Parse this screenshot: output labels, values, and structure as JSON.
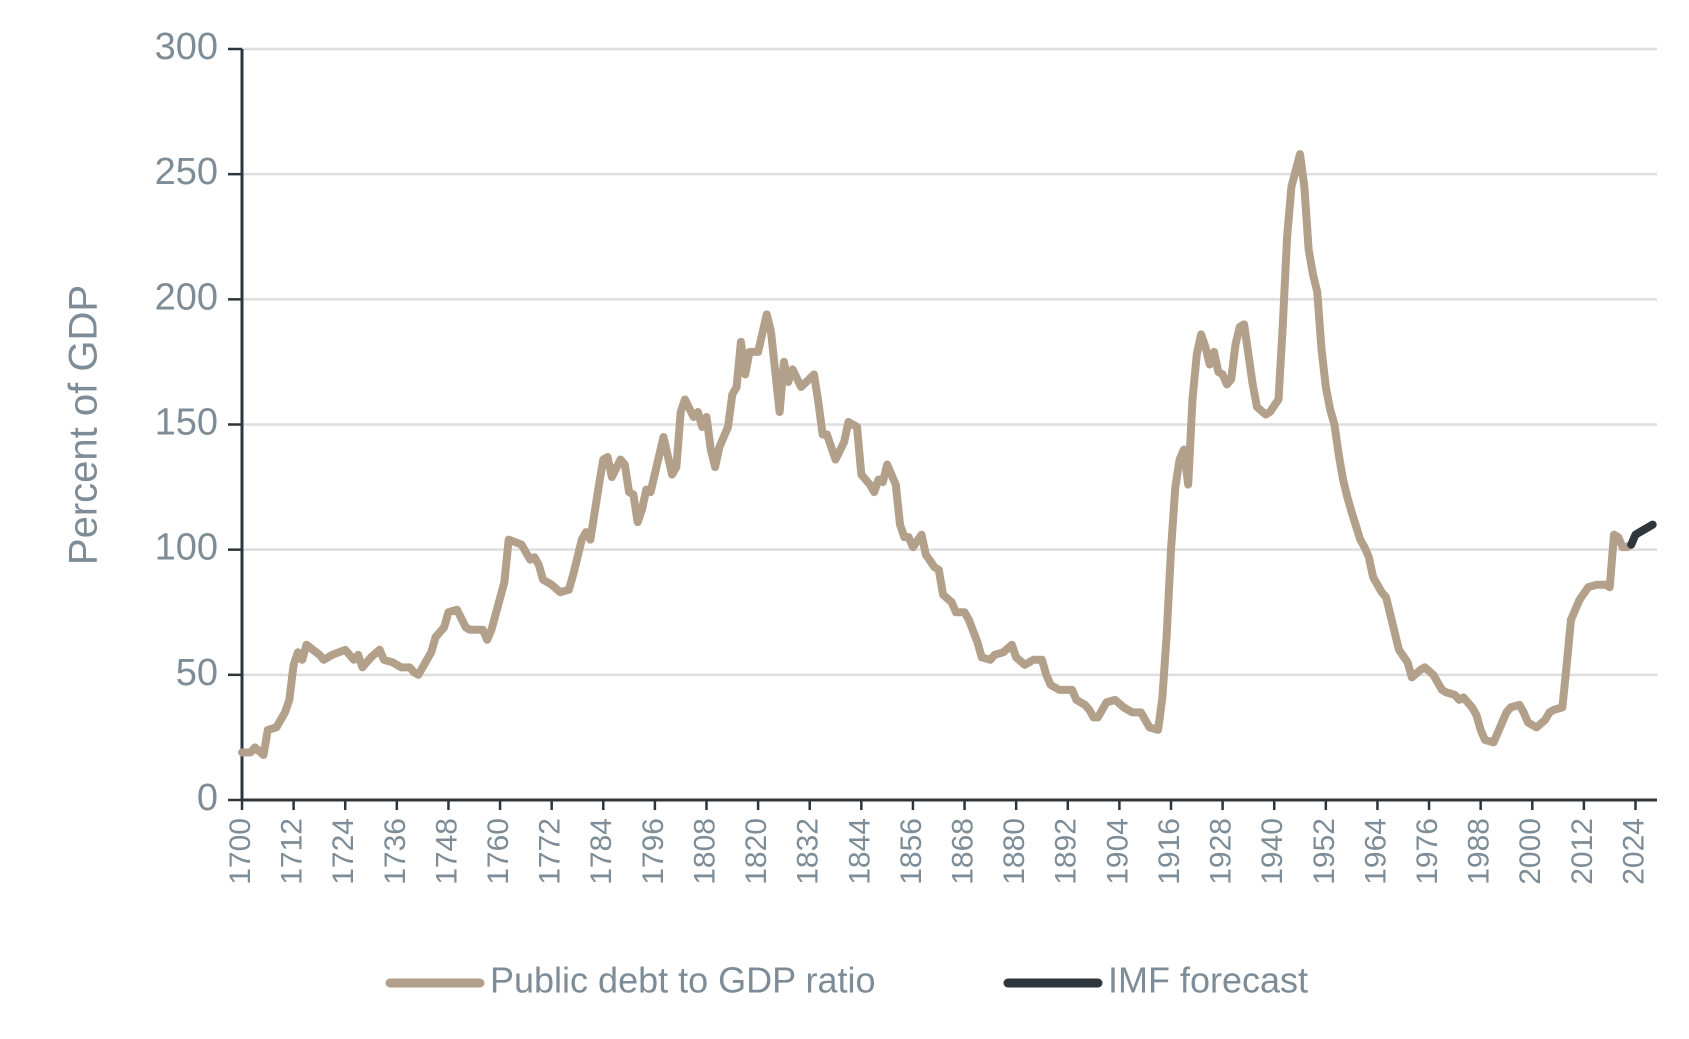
{
  "chart_data": {
    "type": "line",
    "y_label": "Percent of GDP",
    "xlim": [
      1700,
      2029
    ],
    "ylim": [
      0,
      300
    ],
    "xticks": [
      1700,
      1712,
      1724,
      1736,
      1748,
      1760,
      1772,
      1784,
      1796,
      1808,
      1820,
      1832,
      1844,
      1856,
      1868,
      1880,
      1892,
      1904,
      1916,
      1928,
      1940,
      1952,
      1964,
      1976,
      1988,
      2000,
      2012,
      2024
    ],
    "yticks": [
      0,
      50,
      100,
      150,
      200,
      250,
      300
    ],
    "grid": true,
    "legend": "bottom",
    "series": [
      {
        "name": "Public debt to GDP ratio",
        "color": "#b3a08b",
        "x": [
          1700,
          1702,
          1703,
          1705,
          1706,
          1708,
          1710,
          1711,
          1712,
          1713,
          1714,
          1715,
          1718,
          1719,
          1721,
          1724,
          1726,
          1727,
          1728,
          1730,
          1732,
          1733,
          1735,
          1737,
          1739,
          1740,
          1741,
          1742,
          1744,
          1745,
          1747,
          1748,
          1750,
          1752,
          1753,
          1756,
          1757,
          1758,
          1761,
          1762,
          1765,
          1767,
          1768,
          1769,
          1770,
          1772,
          1774,
          1776,
          1777,
          1779,
          1780,
          1781,
          1783,
          1784,
          1785,
          1786,
          1788,
          1789,
          1790,
          1791,
          1792,
          1793,
          1794,
          1795,
          1798,
          1800,
          1801,
          1802,
          1803,
          1805,
          1806,
          1807,
          1808,
          1809,
          1810,
          1811,
          1813,
          1814,
          1815,
          1816,
          1817,
          1818,
          1820,
          1822,
          1823,
          1825,
          1826,
          1827,
          1828,
          1830,
          1833,
          1834,
          1835,
          1836,
          1838,
          1840,
          1841,
          1843,
          1844,
          1846,
          1847,
          1848,
          1849,
          1850,
          1852,
          1853,
          1854,
          1855,
          1856,
          1858,
          1859,
          1861,
          1862,
          1863,
          1865,
          1866,
          1868,
          1869,
          1871,
          1872,
          1874,
          1875,
          1877,
          1879,
          1880,
          1882,
          1884,
          1886,
          1887,
          1888,
          1890,
          1893,
          1894,
          1896,
          1897,
          1898,
          1899,
          1900,
          1901,
          1903,
          1905,
          1907,
          1909,
          1910,
          1911,
          1913,
          1914,
          1915,
          1916,
          1917,
          1918,
          1919,
          1920,
          1921,
          1922,
          1923,
          1924,
          1925,
          1926,
          1927,
          1928,
          1929,
          1930,
          1931,
          1932,
          1933,
          1934,
          1935,
          1936,
          1938,
          1939,
          1941,
          1942,
          1943,
          1944,
          1946,
          1947,
          1948,
          1949,
          1950,
          1951,
          1952,
          1953,
          1954,
          1955,
          1956,
          1957,
          1958,
          1960,
          1961,
          1962,
          1963,
          1965,
          1966,
          1967,
          1969,
          1971,
          1972,
          1974,
          1975,
          1977,
          1979,
          1980,
          1982,
          1983,
          1984,
          1986,
          1987,
          1988,
          1989,
          1991,
          1992,
          1994,
          1995,
          1997,
          1998,
          1999,
          2001,
          2003,
          2004,
          2005,
          2007,
          2008,
          2009,
          2011,
          2013,
          2015,
          2017,
          2018,
          2019,
          2020,
          2021,
          2022,
          2023
        ],
        "values": [
          19,
          19,
          21,
          18,
          28,
          29,
          35,
          40,
          54,
          59,
          56,
          62,
          58,
          56,
          58,
          60,
          56,
          58,
          53,
          57,
          60,
          56,
          55,
          53,
          53,
          51,
          50,
          53,
          59,
          65,
          69,
          75,
          76,
          69,
          68,
          68,
          64,
          68,
          87,
          104,
          102,
          96,
          97,
          94,
          88,
          86,
          83,
          84,
          90,
          104,
          107,
          104,
          126,
          136,
          137,
          129,
          136,
          134,
          123,
          122,
          111,
          116,
          124,
          123,
          145,
          130,
          133,
          155,
          160,
          153,
          155,
          149,
          153,
          140,
          133,
          141,
          149,
          162,
          165,
          183,
          170,
          179,
          179,
          194,
          187,
          155,
          175,
          167,
          172,
          165,
          170,
          159,
          146,
          146,
          136,
          143,
          151,
          149,
          130,
          126,
          123,
          128,
          127,
          134,
          126,
          110,
          105,
          105,
          101,
          106,
          98,
          93,
          92,
          82,
          79,
          75,
          75,
          72,
          63,
          57,
          56,
          58,
          59,
          62,
          57,
          54,
          56,
          56,
          50,
          46,
          44,
          44,
          40,
          38,
          36,
          33,
          33,
          36,
          39,
          40,
          37,
          35,
          35,
          32,
          29,
          28,
          41,
          66,
          100,
          125,
          136,
          140,
          126,
          160,
          178,
          186,
          181,
          174,
          179,
          171,
          170,
          166,
          168,
          182,
          189,
          190,
          178,
          166,
          157,
          154,
          155,
          160,
          190,
          225,
          245,
          258,
          245,
          220,
          210,
          203,
          180,
          165,
          156,
          150,
          138,
          128,
          121,
          115,
          104,
          101,
          97,
          89,
          83,
          81,
          74,
          60,
          55,
          49,
          52,
          53,
          50,
          44,
          43,
          42,
          40,
          41,
          37,
          34,
          28,
          24,
          23,
          27,
          35,
          37,
          38,
          35,
          31,
          29,
          32,
          35,
          36,
          37,
          54,
          72,
          80,
          85,
          86,
          86,
          85,
          106,
          105,
          101,
          101,
          102
        ]
      },
      {
        "name": "IMF forecast",
        "color": "#2e353b",
        "x": [
          2023,
          2024,
          2025,
          2026,
          2027,
          2028
        ],
        "values": [
          102,
          106,
          107,
          108,
          109,
          110
        ]
      }
    ]
  }
}
